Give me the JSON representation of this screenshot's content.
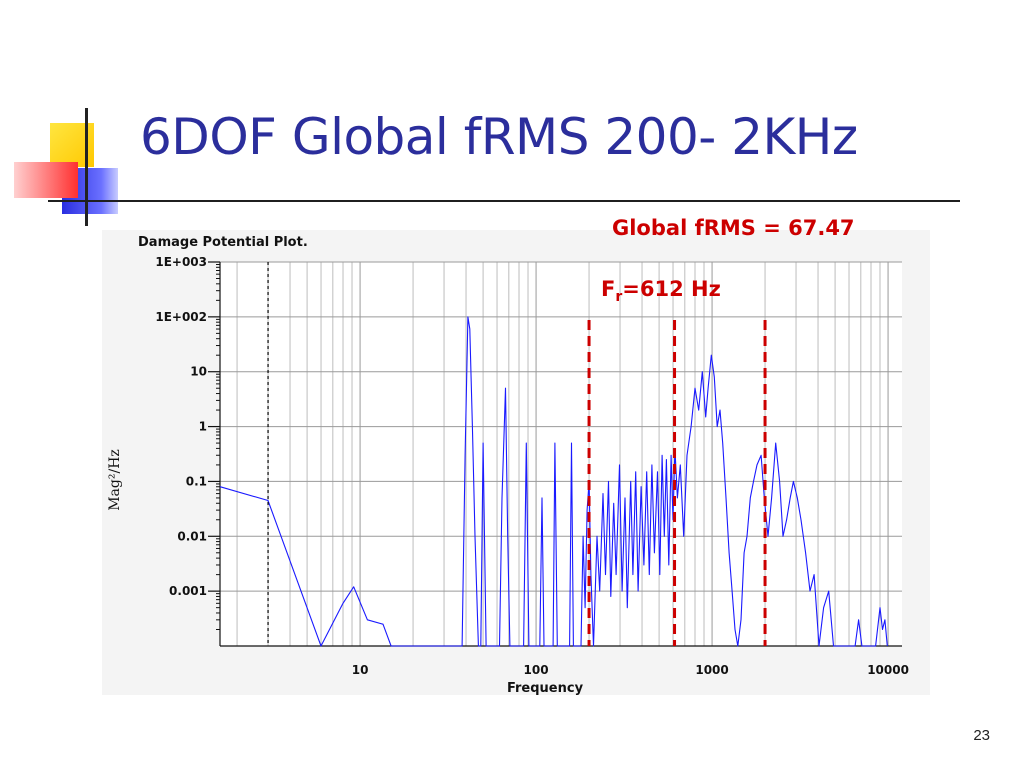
{
  "slide": {
    "title": "6DOF Global fRMS 200- 2KHz",
    "page_number": "23"
  },
  "annotations": {
    "global_frms": "Global fRMS = 67.47",
    "fr_prefix": "F",
    "fr_sub": "r",
    "fr_suffix": "=612 Hz"
  },
  "colors": {
    "title": "#2b2e9c",
    "annotation": "#cc0000",
    "series": "#1a1aff",
    "deco_yellow": "#ffd800",
    "deco_blue": "#2a2ee0",
    "deco_red": "#ff3030"
  },
  "chart_data": {
    "type": "line",
    "title": "Damage Potential Plot.",
    "xlabel": "Frequency",
    "ylabel": "Mag²/Hz",
    "x_scale": "log",
    "y_scale": "log",
    "xlim": [
      1.6,
      12000
    ],
    "ylim": [
      0.0001,
      1000
    ],
    "grid": true,
    "x_ticks": [
      {
        "value": 10,
        "label": "10"
      },
      {
        "value": 100,
        "label": "100"
      },
      {
        "value": 1000,
        "label": "1000"
      },
      {
        "value": 10000,
        "label": "10000"
      }
    ],
    "y_ticks": [
      {
        "value": 1000,
        "label": "1E+003"
      },
      {
        "value": 100,
        "label": "1E+002"
      },
      {
        "value": 10,
        "label": "10"
      },
      {
        "value": 1,
        "label": "1"
      },
      {
        "value": 0.1,
        "label": "0.1"
      },
      {
        "value": 0.01,
        "label": "0.01"
      },
      {
        "value": 0.001,
        "label": "0.001"
      }
    ],
    "reference_lines": [
      {
        "x": 3,
        "style": "dotted",
        "color": "#000000"
      },
      {
        "x": 200,
        "style": "dashed",
        "color": "#cc0000"
      },
      {
        "x": 612,
        "style": "dashed",
        "color": "#cc0000"
      },
      {
        "x": 2000,
        "style": "dashed",
        "color": "#cc0000"
      }
    ],
    "series": [
      {
        "points": [
          [
            1.6,
            0.08
          ],
          [
            3,
            0.045
          ],
          [
            6,
            0.0001
          ],
          [
            8,
            0.0006
          ],
          [
            9.2,
            0.0012
          ],
          [
            11,
            0.0003
          ],
          [
            13.5,
            0.00025
          ],
          [
            15,
            0.0001
          ],
          [
            38,
            0.0001
          ],
          [
            39.5,
            0.3
          ],
          [
            41,
            100
          ],
          [
            42,
            60
          ],
          [
            43.5,
            1
          ],
          [
            45,
            0.01
          ],
          [
            47,
            0.0001
          ],
          [
            48.5,
            0.0001
          ],
          [
            50,
            0.5
          ],
          [
            52,
            0.0001
          ],
          [
            62,
            0.0001
          ],
          [
            64,
            0.05
          ],
          [
            67,
            5
          ],
          [
            69,
            0.01
          ],
          [
            71,
            0.0001
          ],
          [
            85,
            0.0001
          ],
          [
            88,
            0.5
          ],
          [
            91,
            0.0001
          ],
          [
            105,
            0.0001
          ],
          [
            108,
            0.05
          ],
          [
            111,
            0.0001
          ],
          [
            125,
            0.0001
          ],
          [
            128,
            0.5
          ],
          [
            132,
            0.0001
          ],
          [
            155,
            0.0001
          ],
          [
            159,
            0.5
          ],
          [
            163,
            0.0001
          ],
          [
            180,
            0.0001
          ],
          [
            185,
            0.01
          ],
          [
            190,
            0.0005
          ],
          [
            195,
            0.03
          ],
          [
            200,
            0.1
          ],
          [
            205,
            0.002
          ],
          [
            212,
            0.0001
          ],
          [
            222,
            0.01
          ],
          [
            230,
            0.001
          ],
          [
            240,
            0.06
          ],
          [
            248,
            0.002
          ],
          [
            258,
            0.1
          ],
          [
            266,
            0.0008
          ],
          [
            276,
            0.04
          ],
          [
            285,
            0.002
          ],
          [
            298,
            0.2
          ],
          [
            308,
            0.001
          ],
          [
            320,
            0.05
          ],
          [
            330,
            0.0005
          ],
          [
            345,
            0.1
          ],
          [
            355,
            0.002
          ],
          [
            368,
            0.15
          ],
          [
            380,
            0.001
          ],
          [
            395,
            0.08
          ],
          [
            410,
            0.003
          ],
          [
            425,
            0.15
          ],
          [
            440,
            0.002
          ],
          [
            455,
            0.2
          ],
          [
            470,
            0.005
          ],
          [
            490,
            0.15
          ],
          [
            505,
            0.002
          ],
          [
            520,
            0.3
          ],
          [
            535,
            0.01
          ],
          [
            550,
            0.25
          ],
          [
            568,
            0.003
          ],
          [
            585,
            0.3
          ],
          [
            600,
            0.02
          ],
          [
            615,
            0.4
          ],
          [
            635,
            0.05
          ],
          [
            660,
            0.2
          ],
          [
            690,
            0.01
          ],
          [
            720,
            0.3
          ],
          [
            760,
            1
          ],
          [
            800,
            5
          ],
          [
            840,
            2
          ],
          [
            880,
            10
          ],
          [
            920,
            1.5
          ],
          [
            950,
            5
          ],
          [
            990,
            20
          ],
          [
            1030,
            8
          ],
          [
            1070,
            1
          ],
          [
            1110,
            2
          ],
          [
            1150,
            0.5
          ],
          [
            1200,
            0.05
          ],
          [
            1250,
            0.005
          ],
          [
            1300,
            0.001
          ],
          [
            1350,
            0.0002
          ],
          [
            1400,
            0.0001
          ],
          [
            1460,
            0.0003
          ],
          [
            1520,
            0.005
          ],
          [
            1580,
            0.01
          ],
          [
            1650,
            0.05
          ],
          [
            1720,
            0.1
          ],
          [
            1800,
            0.2
          ],
          [
            1900,
            0.3
          ],
          [
            1980,
            0.05
          ],
          [
            2080,
            0.01
          ],
          [
            2180,
            0.05
          ],
          [
            2300,
            0.5
          ],
          [
            2420,
            0.1
          ],
          [
            2530,
            0.01
          ],
          [
            2650,
            0.02
          ],
          [
            2780,
            0.05
          ],
          [
            2900,
            0.1
          ],
          [
            3050,
            0.05
          ],
          [
            3200,
            0.02
          ],
          [
            3400,
            0.005
          ],
          [
            3600,
            0.001
          ],
          [
            3800,
            0.002
          ],
          [
            4050,
            0.0001
          ],
          [
            4300,
            0.0005
          ],
          [
            4600,
            0.001
          ],
          [
            4900,
            0.0001
          ],
          [
            6500,
            0.0001
          ],
          [
            6800,
            0.0003
          ],
          [
            7100,
            0.0001
          ],
          [
            8500,
            0.0001
          ],
          [
            9000,
            0.0005
          ],
          [
            9300,
            0.0002
          ],
          [
            9600,
            0.0003
          ],
          [
            9900,
            0.0001
          ]
        ]
      }
    ]
  }
}
